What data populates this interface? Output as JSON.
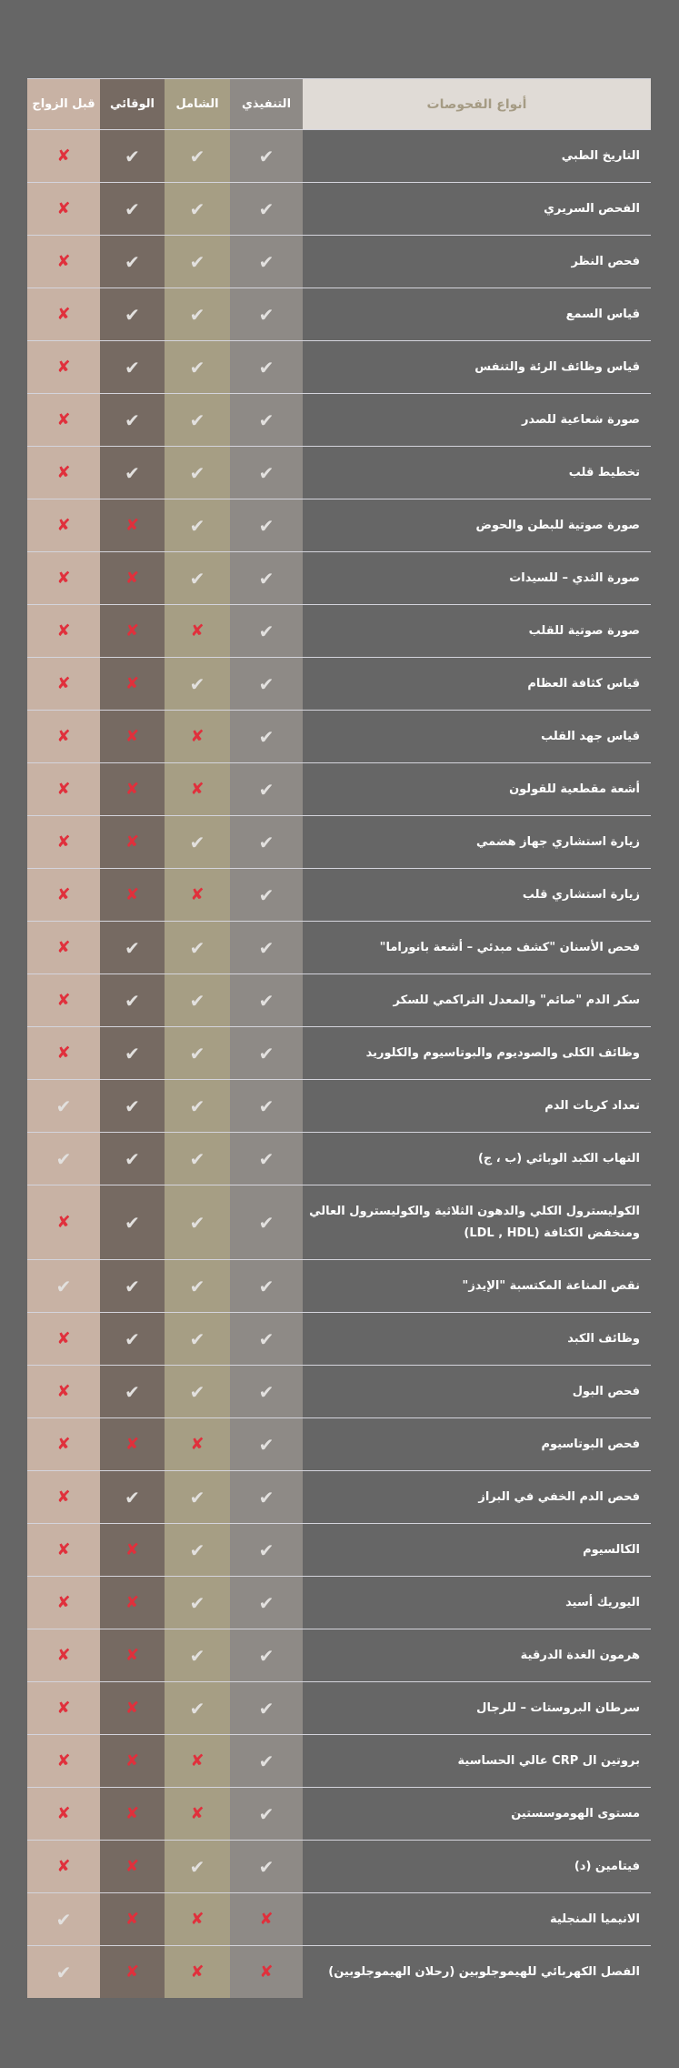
{
  "colors": {
    "executive": "#8e8a86",
    "comprehensive": "#a69e84",
    "preventive": "#766a62",
    "premarital": "#c8b2a4",
    "check": "#e2e0de",
    "cross": "#e0303c"
  },
  "header": {
    "tests": "أنواع الفحوصات",
    "executive": "التنفيذي",
    "comprehensive": "الشامل",
    "preventive": "الوقائي",
    "premarital": "قبل الزواج"
  },
  "icons": {
    "yes": "check-icon",
    "no": "cross-icon"
  },
  "rows": [
    {
      "name": "التاريخ الطبي",
      "executive": true,
      "comprehensive": true,
      "preventive": true,
      "premarital": false
    },
    {
      "name": "الفحص السريري",
      "executive": true,
      "comprehensive": true,
      "preventive": true,
      "premarital": false
    },
    {
      "name": "فحص النظر",
      "executive": true,
      "comprehensive": true,
      "preventive": true,
      "premarital": false
    },
    {
      "name": "قياس السمع",
      "executive": true,
      "comprehensive": true,
      "preventive": true,
      "premarital": false
    },
    {
      "name": "قياس وظائف الرئة والتنفس",
      "executive": true,
      "comprehensive": true,
      "preventive": true,
      "premarital": false
    },
    {
      "name": "صورة شعاعية للصدر",
      "executive": true,
      "comprehensive": true,
      "preventive": true,
      "premarital": false
    },
    {
      "name": "تخطيط قلب",
      "executive": true,
      "comprehensive": true,
      "preventive": true,
      "premarital": false
    },
    {
      "name": "صورة صوتية للبطن والحوض",
      "executive": true,
      "comprehensive": true,
      "preventive": false,
      "premarital": false
    },
    {
      "name": "صورة الثدي – للسيدات",
      "executive": true,
      "comprehensive": true,
      "preventive": false,
      "premarital": false
    },
    {
      "name": "صورة صوتية للقلب",
      "executive": true,
      "comprehensive": false,
      "preventive": false,
      "premarital": false
    },
    {
      "name": "قياس كثافة العظام",
      "executive": true,
      "comprehensive": true,
      "preventive": false,
      "premarital": false
    },
    {
      "name": "قياس جهد القلب",
      "executive": true,
      "comprehensive": false,
      "preventive": false,
      "premarital": false
    },
    {
      "name": "أشعة مقطعية للقولون",
      "executive": true,
      "comprehensive": false,
      "preventive": false,
      "premarital": false
    },
    {
      "name": "زيارة استشاري جهاز هضمي",
      "executive": true,
      "comprehensive": true,
      "preventive": false,
      "premarital": false
    },
    {
      "name": "زيارة استشاري قلب",
      "executive": true,
      "comprehensive": false,
      "preventive": false,
      "premarital": false
    },
    {
      "name": "فحص الأسنان \"كشف مبدئي – أشعة بانوراما\"",
      "executive": true,
      "comprehensive": true,
      "preventive": true,
      "premarital": false
    },
    {
      "name": "سكر الدم \"صائم\" والمعدل التراكمي للسكر",
      "executive": true,
      "comprehensive": true,
      "preventive": true,
      "premarital": false
    },
    {
      "name": "وظائف الكلى والصوديوم والبوتاسيوم والكلوريد",
      "executive": true,
      "comprehensive": true,
      "preventive": true,
      "premarital": false
    },
    {
      "name": "تعداد كريات الدم",
      "executive": true,
      "comprehensive": true,
      "preventive": true,
      "premarital": true
    },
    {
      "name": "التهاب الكبد الوبائي (ب ، ج)",
      "executive": true,
      "comprehensive": true,
      "preventive": true,
      "premarital": true
    },
    {
      "name": "الكوليسترول الكلي والدهون الثلاثية والكوليسترول العالي ومنخفض الكثافة (LDL , HDL)",
      "executive": true,
      "comprehensive": true,
      "preventive": true,
      "premarital": false
    },
    {
      "name": "نقص المناعة المكتسبة \"الإيدز\"",
      "executive": true,
      "comprehensive": true,
      "preventive": true,
      "premarital": true
    },
    {
      "name": "وظائف الكبد",
      "executive": true,
      "comprehensive": true,
      "preventive": true,
      "premarital": false
    },
    {
      "name": "فحص البول",
      "executive": true,
      "comprehensive": true,
      "preventive": true,
      "premarital": false
    },
    {
      "name": "فحص البوتاسيوم",
      "executive": true,
      "comprehensive": false,
      "preventive": false,
      "premarital": false
    },
    {
      "name": "فحص الدم الخفي في البراز",
      "executive": true,
      "comprehensive": true,
      "preventive": true,
      "premarital": false
    },
    {
      "name": "الكالسيوم",
      "executive": true,
      "comprehensive": true,
      "preventive": false,
      "premarital": false
    },
    {
      "name": "اليوريك أسيد",
      "executive": true,
      "comprehensive": true,
      "preventive": false,
      "premarital": false
    },
    {
      "name": "هرمون الغدة الدرقية",
      "executive": true,
      "comprehensive": true,
      "preventive": false,
      "premarital": false
    },
    {
      "name": "سرطان البروستات – للرجال",
      "executive": true,
      "comprehensive": true,
      "preventive": false,
      "premarital": false
    },
    {
      "name": "بروتين ال CRP عالي الحساسية",
      "executive": true,
      "comprehensive": false,
      "preventive": false,
      "premarital": false
    },
    {
      "name": "مستوى الهوموسستين",
      "executive": true,
      "comprehensive": false,
      "preventive": false,
      "premarital": false
    },
    {
      "name": "فيتامين (د)",
      "executive": true,
      "comprehensive": true,
      "preventive": false,
      "premarital": false
    },
    {
      "name": "الانيميا المنجلية",
      "executive": false,
      "comprehensive": false,
      "preventive": false,
      "premarital": true
    },
    {
      "name": "الفصل الكهربائي للهيموجلوبين (رحلان الهيموجلوبين)",
      "executive": false,
      "comprehensive": false,
      "preventive": false,
      "premarital": true
    }
  ]
}
